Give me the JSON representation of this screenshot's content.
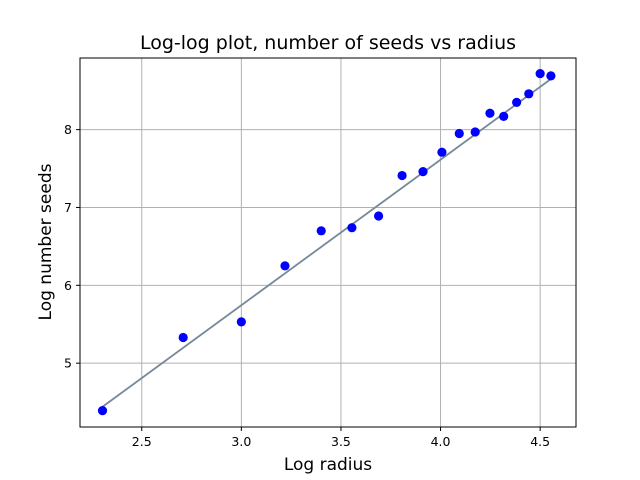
{
  "chart_data": {
    "type": "scatter",
    "title": "Log-log plot, number of seeds vs radius",
    "xlabel": "Log radius",
    "ylabel": "Log number seeds",
    "xlim": [
      2.19,
      4.68
    ],
    "ylim": [
      4.18,
      8.92
    ],
    "xticks": [
      2.5,
      3.0,
      3.5,
      4.0,
      4.5
    ],
    "xtick_labels": [
      "2.5",
      "3.0",
      "3.5",
      "4.0",
      "4.5"
    ],
    "yticks": [
      5,
      6,
      7,
      8
    ],
    "ytick_labels": [
      "5",
      "6",
      "7",
      "8"
    ],
    "grid": true,
    "series": [
      {
        "kind": "points",
        "color": "#0000ff",
        "x": [
          2.303,
          2.708,
          3.0,
          3.219,
          3.401,
          3.555,
          3.689,
          3.807,
          3.912,
          4.007,
          4.094,
          4.174,
          4.248,
          4.317,
          4.382,
          4.443,
          4.5,
          4.554
        ],
        "y": [
          4.39,
          5.33,
          5.53,
          6.25,
          6.7,
          6.74,
          6.89,
          7.41,
          7.46,
          7.71,
          7.95,
          7.97,
          8.21,
          8.17,
          8.35,
          8.46,
          8.72,
          8.69
        ]
      },
      {
        "kind": "fit-line",
        "color": "#778899",
        "x": [
          2.303,
          4.554
        ],
        "y": [
          4.44,
          8.65
        ]
      }
    ]
  }
}
